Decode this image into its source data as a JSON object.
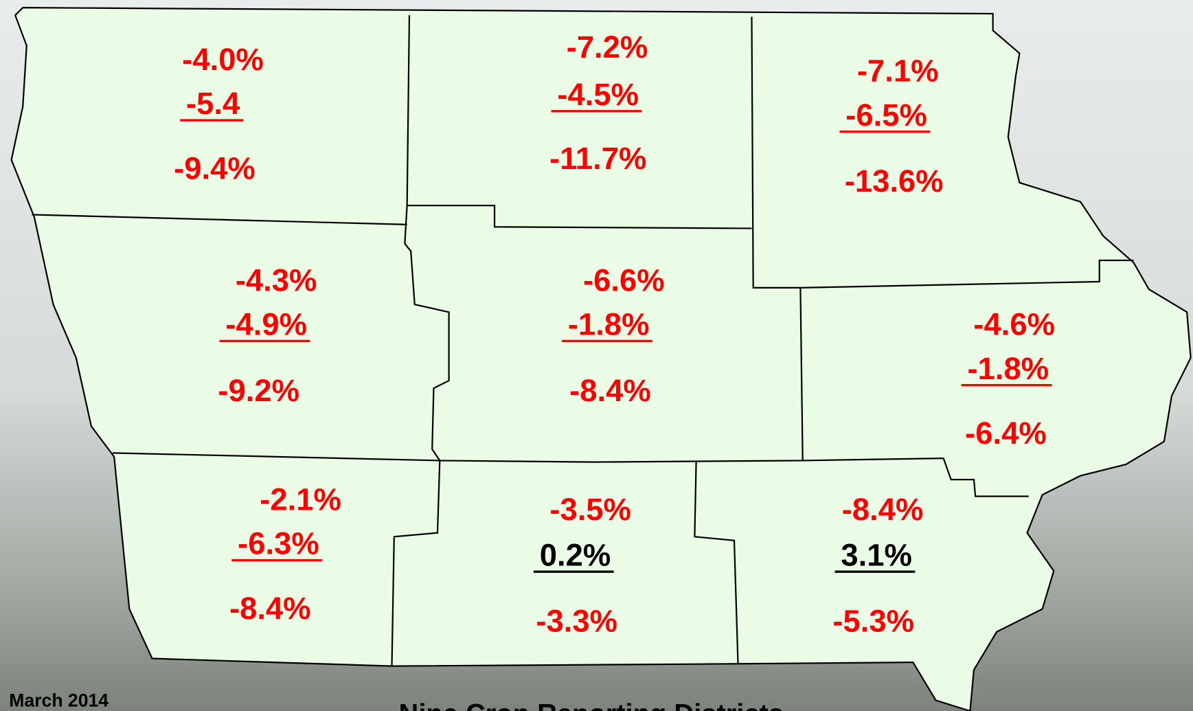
{
  "date": "March 2014",
  "caption": "Nine Crop Reporting Districts",
  "districts": [
    {
      "lines": [
        {
          "text": "-4.0%",
          "color": "#ff0000"
        },
        {
          "text": "-5.4",
          "color": "#ff0000",
          "underline": true
        },
        {
          "text": "-9.4%",
          "color": "#ff0000"
        }
      ]
    },
    {
      "lines": [
        {
          "text": "-7.2%",
          "color": "#ff0000"
        },
        {
          "text": "-4.5%",
          "color": "#ff0000",
          "underline": true
        },
        {
          "text": "-11.7%",
          "color": "#ff0000"
        }
      ]
    },
    {
      "lines": [
        {
          "text": "-7.1%",
          "color": "#ff0000"
        },
        {
          "text": "-6.5%",
          "color": "#ff0000",
          "underline": true
        },
        {
          "text": "-13.6%",
          "color": "#ff0000"
        }
      ]
    },
    {
      "lines": [
        {
          "text": "-4.3%",
          "color": "#ff0000"
        },
        {
          "text": "-4.9%",
          "color": "#ff0000",
          "underline": true
        },
        {
          "text": "-9.2%",
          "color": "#ff0000"
        }
      ]
    },
    {
      "lines": [
        {
          "text": "-6.6%",
          "color": "#ff0000"
        },
        {
          "text": "-1.8%",
          "color": "#ff0000",
          "underline": true
        },
        {
          "text": "-8.4%",
          "color": "#ff0000"
        }
      ]
    },
    {
      "lines": [
        {
          "text": "-4.6%",
          "color": "#ff0000"
        },
        {
          "text": "-1.8%",
          "color": "#ff0000",
          "underline": true
        },
        {
          "text": "-6.4%",
          "color": "#ff0000"
        }
      ]
    },
    {
      "lines": [
        {
          "text": "-2.1%",
          "color": "#ff0000"
        },
        {
          "text": "-6.3%",
          "color": "#ff0000",
          "underline": true
        },
        {
          "text": "-8.4%",
          "color": "#ff0000"
        }
      ]
    },
    {
      "lines": [
        {
          "text": "-3.5%",
          "color": "#ff0000"
        },
        {
          "text": "0.2%",
          "color": "#000000",
          "underline": true
        },
        {
          "text": "-3.3%",
          "color": "#ff0000"
        }
      ]
    },
    {
      "lines": [
        {
          "text": "-8.4%",
          "color": "#ff0000"
        },
        {
          "text": "3.1%",
          "color": "#000000",
          "underline": true
        },
        {
          "text": "-5.3%",
          "color": "#ff0000"
        }
      ]
    }
  ]
}
